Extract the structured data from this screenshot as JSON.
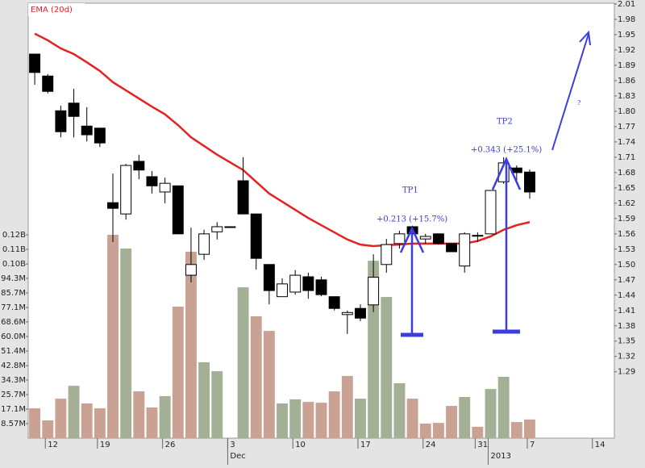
{
  "chart_data": {
    "type": "candlestick",
    "legend": "EMA (20d)",
    "open": [
      1.912,
      1.869,
      1.801,
      1.816,
      1.771,
      1.767,
      1.621,
      1.599,
      1.702,
      1.672,
      1.642,
      1.654,
      1.479,
      1.52,
      1.564,
      1.574,
      1.664,
      1.599,
      1.5,
      1.437,
      1.446,
      1.476,
      1.47,
      1.437,
      1.402,
      1.414,
      1.421,
      1.5,
      1.541,
      1.574,
      1.55,
      1.56,
      1.541,
      1.497,
      1.556,
      1.56,
      1.662,
      1.689,
      1.681
    ],
    "high": [
      1.912,
      1.873,
      1.811,
      1.844,
      1.808,
      1.767,
      1.678,
      1.697,
      1.715,
      1.683,
      1.67,
      1.655,
      1.572,
      1.568,
      1.583,
      1.574,
      1.71,
      1.599,
      1.5,
      1.473,
      1.489,
      1.484,
      1.476,
      1.437,
      1.41,
      1.422,
      1.52,
      1.55,
      1.566,
      1.576,
      1.56,
      1.561,
      1.541,
      1.563,
      1.563,
      1.645,
      1.71,
      1.694,
      1.686
    ],
    "low": [
      1.852,
      1.835,
      1.749,
      1.749,
      1.741,
      1.73,
      1.544,
      1.588,
      1.667,
      1.639,
      1.62,
      1.56,
      1.465,
      1.509,
      1.549,
      1.574,
      1.599,
      1.49,
      1.422,
      1.437,
      1.441,
      1.433,
      1.438,
      1.41,
      1.364,
      1.389,
      1.407,
      1.484,
      1.531,
      1.542,
      1.541,
      1.539,
      1.525,
      1.484,
      1.544,
      1.56,
      1.658,
      1.662,
      1.629
    ],
    "close": [
      1.876,
      1.839,
      1.76,
      1.79,
      1.754,
      1.738,
      1.61,
      1.694,
      1.685,
      1.654,
      1.659,
      1.56,
      1.5,
      1.56,
      1.574,
      1.574,
      1.599,
      1.512,
      1.449,
      1.462,
      1.479,
      1.449,
      1.441,
      1.414,
      1.406,
      1.395,
      1.475,
      1.539,
      1.56,
      1.56,
      1.555,
      1.541,
      1.525,
      1.56,
      1.557,
      1.645,
      1.699,
      1.68,
      1.642
    ],
    "ema": [
      1.952,
      1.939,
      1.923,
      1.912,
      1.896,
      1.879,
      1.857,
      1.841,
      1.825,
      1.809,
      1.794,
      1.773,
      1.749,
      1.732,
      1.715,
      1.7,
      1.685,
      1.662,
      1.639,
      1.623,
      1.607,
      1.591,
      1.577,
      1.563,
      1.549,
      1.539,
      1.536,
      1.538,
      1.539,
      1.541,
      1.541,
      1.541,
      1.541,
      1.541,
      1.546,
      1.555,
      1.568,
      1.577,
      1.583
    ],
    "ema_color": "#e8201f",
    "volume": [
      17.6,
      10.5,
      23.3,
      30.9,
      20.5,
      17.6,
      120.0,
      111.9,
      27.6,
      18.1,
      24.8,
      77.6,
      110.0,
      44.8,
      39.5,
      0,
      89.0,
      71.9,
      63.3,
      20.5,
      22.9,
      21.4,
      20.9,
      27.6,
      36.7,
      23.3,
      104.7,
      83.3,
      32.4,
      23.3,
      8.6,
      9.0,
      19.0,
      24.3,
      6.7,
      29.0,
      36.2,
      9.5,
      11.0
    ],
    "volume_colors": [
      "#c9a294",
      "#c9a294",
      "#c9a294",
      "#a4b096",
      "#c9a294",
      "#c9a294",
      "#c9a294",
      "#a4b096",
      "#c9a294",
      "#c9a294",
      "#a4b096",
      "#c9a294",
      "#c9a294",
      "#a4b096",
      "#a4b096",
      "#c9a294",
      "#a4b096",
      "#c9a294",
      "#c9a294",
      "#a4b096",
      "#a4b096",
      "#c9a294",
      "#c9a294",
      "#c9a294",
      "#c9a294",
      "#a4b096",
      "#a4b096",
      "#a4b096",
      "#a4b096",
      "#c9a294",
      "#c9a294",
      "#c9a294",
      "#c9a294",
      "#a4b096",
      "#c9a294",
      "#a4b096",
      "#a4b096",
      "#c9a294",
      "#c9a294"
    ],
    "xlim": [
      -0.5,
      44.5
    ],
    "xticks": [
      {
        "value": 1,
        "label": "12"
      },
      {
        "value": 5,
        "label": "19"
      },
      {
        "value": 10,
        "label": "26"
      },
      {
        "value": 15,
        "label": "3"
      },
      {
        "value": 20,
        "label": "10"
      },
      {
        "value": 25,
        "label": "17"
      },
      {
        "value": 30,
        "label": "24"
      },
      {
        "value": 34,
        "label": "31"
      },
      {
        "value": 38,
        "label": "7"
      },
      {
        "value": 43,
        "label": "14"
      }
    ],
    "xticks2": [
      {
        "value": 15,
        "label": "Dec"
      },
      {
        "value": 35,
        "label": "2013"
      }
    ],
    "ylim": [
      1.16,
      2.01
    ],
    "yticks": [
      2.01,
      1.98,
      1.95,
      1.92,
      1.89,
      1.86,
      1.83,
      {
        "value": 1.8,
        "label": "1.80"
      },
      1.77,
      1.74,
      1.71,
      1.68,
      1.65,
      1.62,
      1.59,
      1.56,
      1.53,
      {
        "value": 1.5,
        "label": "1.50"
      },
      1.47,
      1.44,
      1.41,
      1.38,
      1.35,
      1.32,
      1.29
    ],
    "volume_lim": [
      0,
      120
    ],
    "volume_ticks": [
      {
        "value": 120,
        "label": "0.12B"
      },
      {
        "value": 111.4,
        "label": "0.11B"
      },
      {
        "value": 102.8,
        "label": "0.10B"
      },
      {
        "value": 94.3,
        "label": "94.3M"
      },
      {
        "value": 85.7,
        "label": "85.7M"
      },
      {
        "value": 77.1,
        "label": "77.1M"
      },
      {
        "value": 68.6,
        "label": "68.6M"
      },
      {
        "value": 60.0,
        "label": "60.0M"
      },
      {
        "value": 51.4,
        "label": "51.4M"
      },
      {
        "value": 42.8,
        "label": "42.8M"
      },
      {
        "value": 34.3,
        "label": "34.3M"
      },
      {
        "value": 25.7,
        "label": "25.7M"
      },
      {
        "value": 17.1,
        "label": "17.1M"
      },
      {
        "value": 8.57,
        "label": "8.57M"
      }
    ],
    "annotations": [
      "+0.213 (+15.7%)",
      "TP1",
      "+0.343 (+25.1%)",
      "TP2",
      "?"
    ]
  }
}
